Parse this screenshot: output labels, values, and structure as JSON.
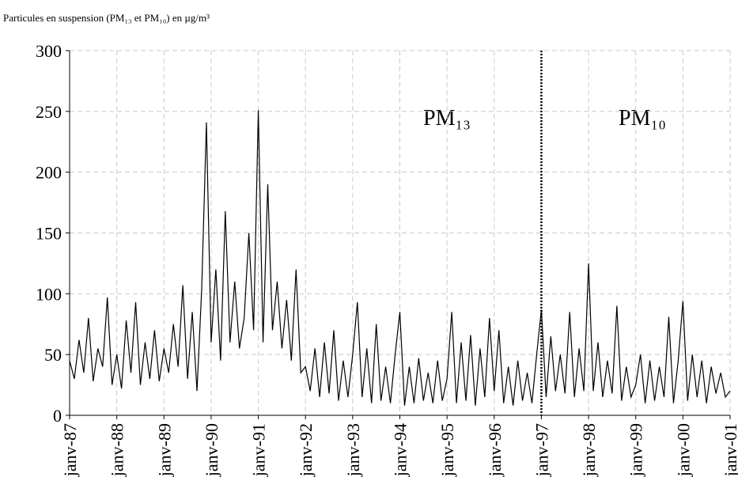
{
  "chart_data": {
    "type": "line",
    "title": "Particules en suspension (PM₁₃ et PM₁₀) en µg/m³",
    "annotations": [
      "PM₁₃",
      "PM₁₀"
    ],
    "vline": 1997,
    "xlim": [
      1987,
      2001
    ],
    "xticks": [
      {
        "value": 1987,
        "label": "janv-87"
      },
      {
        "value": 1988,
        "label": "janv-88"
      },
      {
        "value": 1989,
        "label": "janv-89"
      },
      {
        "value": 1990,
        "label": "janv-90"
      },
      {
        "value": 1991,
        "label": "janv-91"
      },
      {
        "value": 1992,
        "label": "janv-92"
      },
      {
        "value": 1993,
        "label": "janv-93"
      },
      {
        "value": 1994,
        "label": "janv-94"
      },
      {
        "value": 1995,
        "label": "janv-95"
      },
      {
        "value": 1996,
        "label": "janv-96"
      },
      {
        "value": 1997,
        "label": "janv-97"
      },
      {
        "value": 1998,
        "label": "janv-98"
      },
      {
        "value": 1999,
        "label": "janv-99"
      },
      {
        "value": 2000,
        "label": "janv-00"
      },
      {
        "value": 2001,
        "label": "janv-01"
      }
    ],
    "ylim": [
      0,
      300
    ],
    "yticks": [
      0,
      50,
      100,
      150,
      200,
      250,
      300
    ],
    "grid": true,
    "x": [
      1987,
      1987.1,
      1987.2,
      1987.3,
      1987.4,
      1987.5,
      1987.6,
      1987.7,
      1987.8,
      1987.9,
      1988,
      1988.1,
      1988.2,
      1988.3,
      1988.4,
      1988.5,
      1988.6,
      1988.7,
      1988.8,
      1988.9,
      1989,
      1989.1,
      1989.2,
      1989.3,
      1989.4,
      1989.5,
      1989.6,
      1989.7,
      1989.8,
      1989.9,
      1990,
      1990.1,
      1990.2,
      1990.3,
      1990.4,
      1990.5,
      1990.6,
      1990.7,
      1990.8,
      1990.9,
      1991,
      1991.1,
      1991.2,
      1991.3,
      1991.4,
      1991.5,
      1991.6,
      1991.7,
      1991.8,
      1991.9,
      1992,
      1992.1,
      1992.2,
      1992.3,
      1992.4,
      1992.5,
      1992.6,
      1992.7,
      1992.8,
      1992.9,
      1993,
      1993.1,
      1993.2,
      1993.3,
      1993.4,
      1993.5,
      1993.6,
      1993.7,
      1993.8,
      1993.9,
      1994,
      1994.1,
      1994.2,
      1994.3,
      1994.4,
      1994.5,
      1994.6,
      1994.7,
      1994.8,
      1994.9,
      1995,
      1995.1,
      1995.2,
      1995.3,
      1995.4,
      1995.5,
      1995.6,
      1995.7,
      1995.8,
      1995.9,
      1996,
      1996.1,
      1996.2,
      1996.3,
      1996.4,
      1996.5,
      1996.6,
      1996.7,
      1996.8,
      1996.9,
      1997,
      1997.1,
      1997.2,
      1997.3,
      1997.4,
      1997.5,
      1997.6,
      1997.7,
      1997.8,
      1997.9,
      1998,
      1998.1,
      1998.2,
      1998.3,
      1998.4,
      1998.5,
      1998.6,
      1998.7,
      1998.8,
      1998.9,
      1999,
      1999.1,
      1999.2,
      1999.3,
      1999.4,
      1999.5,
      1999.6,
      1999.7,
      1999.8,
      1999.9,
      2000,
      2000.1,
      2000.2,
      2000.3,
      2000.4,
      2000.5,
      2000.6,
      2000.7,
      2000.8,
      2000.9,
      2001
    ],
    "series": [
      {
        "color": "#000000",
        "values": [
          45,
          30,
          62,
          35,
          80,
          28,
          55,
          40,
          97,
          25,
          50,
          22,
          78,
          35,
          93,
          25,
          60,
          30,
          70,
          28,
          55,
          35,
          75,
          40,
          107,
          30,
          85,
          20,
          104,
          241,
          60,
          120,
          45,
          168,
          60,
          110,
          55,
          80,
          150,
          70,
          251,
          60,
          190,
          70,
          110,
          55,
          95,
          45,
          120,
          35,
          40,
          20,
          55,
          15,
          60,
          18,
          70,
          12,
          45,
          15,
          50,
          93,
          15,
          55,
          10,
          75,
          12,
          40,
          10,
          50,
          85,
          8,
          40,
          10,
          47,
          12,
          35,
          10,
          45,
          12,
          30,
          85,
          10,
          60,
          12,
          66,
          8,
          55,
          15,
          80,
          20,
          70,
          10,
          40,
          8,
          45,
          12,
          35,
          10,
          50,
          87,
          15,
          65,
          20,
          50,
          18,
          85,
          15,
          55,
          20,
          125,
          20,
          60,
          15,
          45,
          18,
          90,
          12,
          40,
          15,
          25,
          50,
          10,
          45,
          12,
          40,
          15,
          81,
          10,
          45,
          94,
          12,
          50,
          15,
          45,
          10,
          40,
          18,
          35,
          15,
          20
        ]
      }
    ]
  }
}
